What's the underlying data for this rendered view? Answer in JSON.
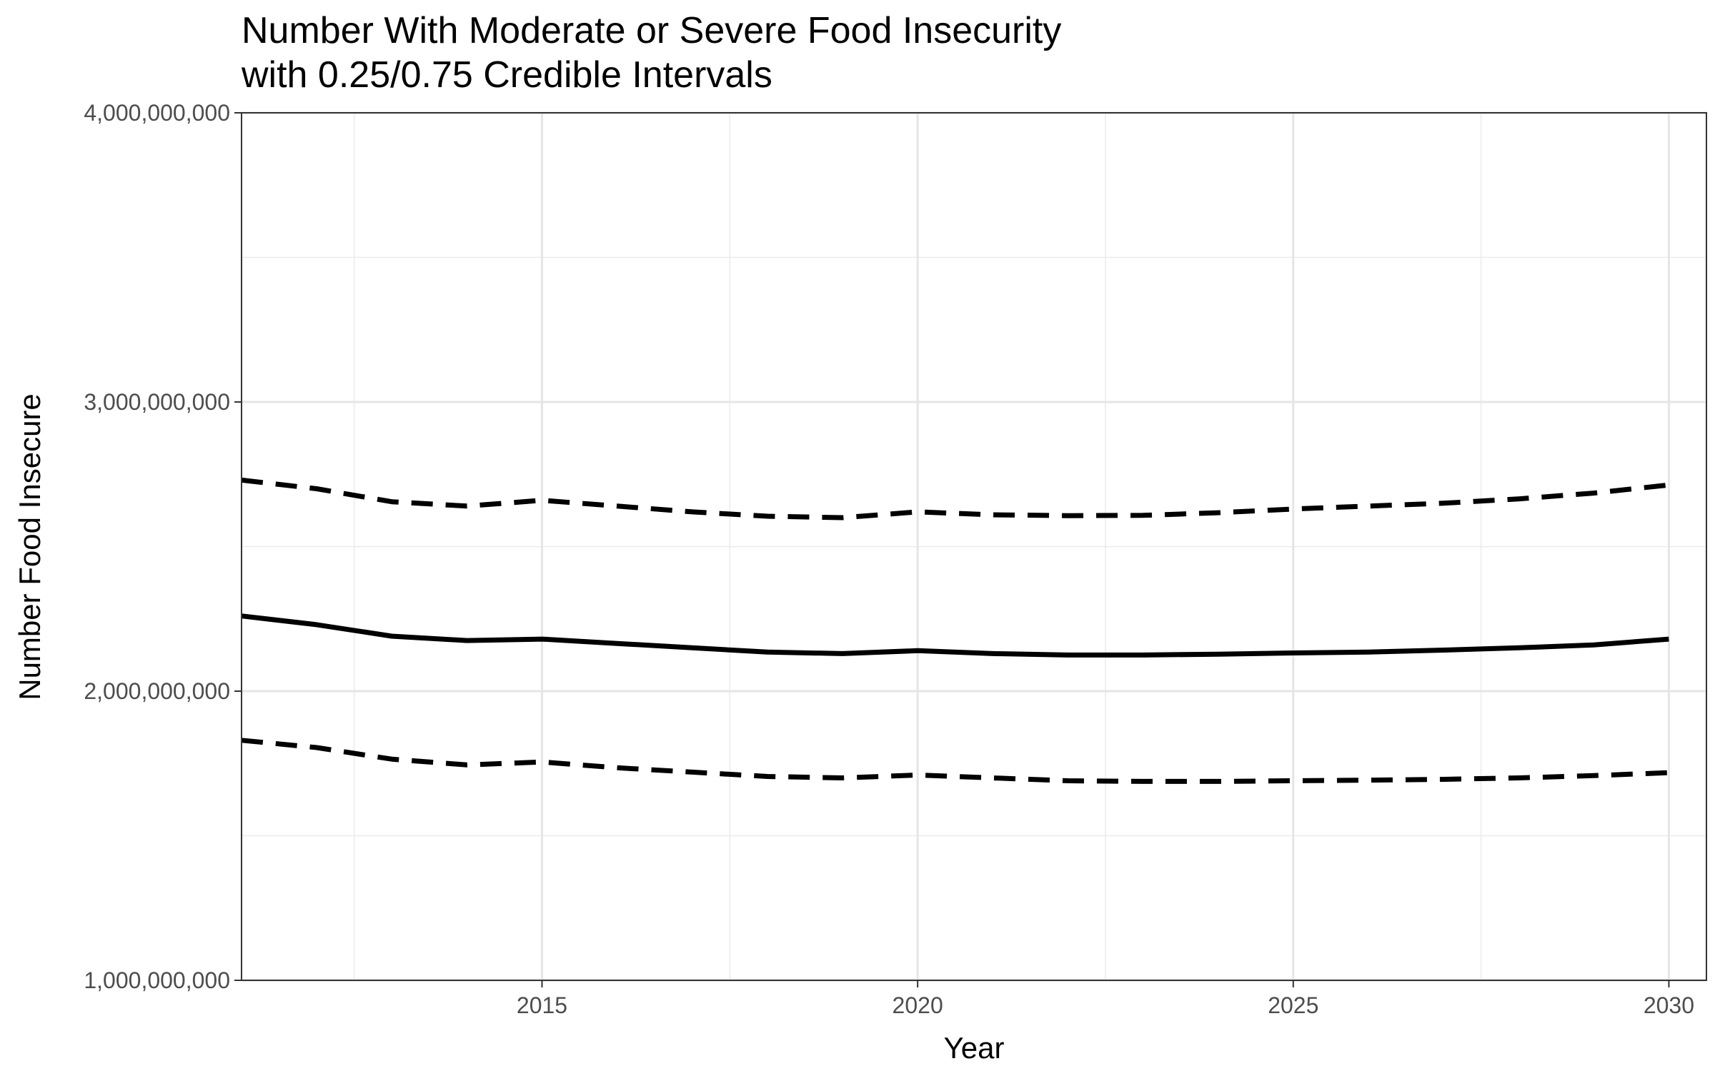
{
  "chart_data": {
    "type": "line",
    "title": "Number With Moderate or Severe Food Insecurity",
    "subtitle": "with 0.25/0.75 Credible Intervals",
    "xlabel": "Year",
    "ylabel": "Number Food Insecure",
    "xlim": [
      2011,
      2030.5
    ],
    "ylim": [
      1000000000,
      4000000000
    ],
    "x_ticks": [
      2015,
      2020,
      2025,
      2030
    ],
    "y_ticks": [
      1000000000,
      2000000000,
      3000000000,
      4000000000
    ],
    "y_tick_labels": [
      "1,000,000,000",
      "2,000,000,000",
      "3,000,000,000",
      "4,000,000,000"
    ],
    "x_tick_labels": [
      "2015",
      "2020",
      "2025",
      "2030"
    ],
    "grid": true,
    "legend": "none",
    "x": [
      2011,
      2012,
      2013,
      2014,
      2015,
      2016,
      2017,
      2018,
      2019,
      2020,
      2021,
      2022,
      2023,
      2024,
      2025,
      2026,
      2027,
      2028,
      2029,
      2030
    ],
    "series": [
      {
        "style": "dashed",
        "values": [
          2730000000,
          2700000000,
          2655000000,
          2640000000,
          2660000000,
          2640000000,
          2620000000,
          2605000000,
          2600000000,
          2620000000,
          2610000000,
          2607000000,
          2608000000,
          2617000000,
          2630000000,
          2640000000,
          2650000000,
          2665000000,
          2685000000,
          2713000000
        ]
      },
      {
        "style": "solid",
        "values": [
          2260000000,
          2230000000,
          2190000000,
          2175000000,
          2180000000,
          2165000000,
          2150000000,
          2135000000,
          2130000000,
          2140000000,
          2130000000,
          2125000000,
          2125000000,
          2128000000,
          2132000000,
          2135000000,
          2142000000,
          2150000000,
          2160000000,
          2180000000
        ]
      },
      {
        "style": "dashed",
        "values": [
          1830000000,
          1805000000,
          1765000000,
          1745000000,
          1755000000,
          1735000000,
          1720000000,
          1705000000,
          1700000000,
          1710000000,
          1700000000,
          1690000000,
          1688000000,
          1688000000,
          1690000000,
          1692000000,
          1695000000,
          1700000000,
          1708000000,
          1718000000
        ]
      }
    ]
  }
}
